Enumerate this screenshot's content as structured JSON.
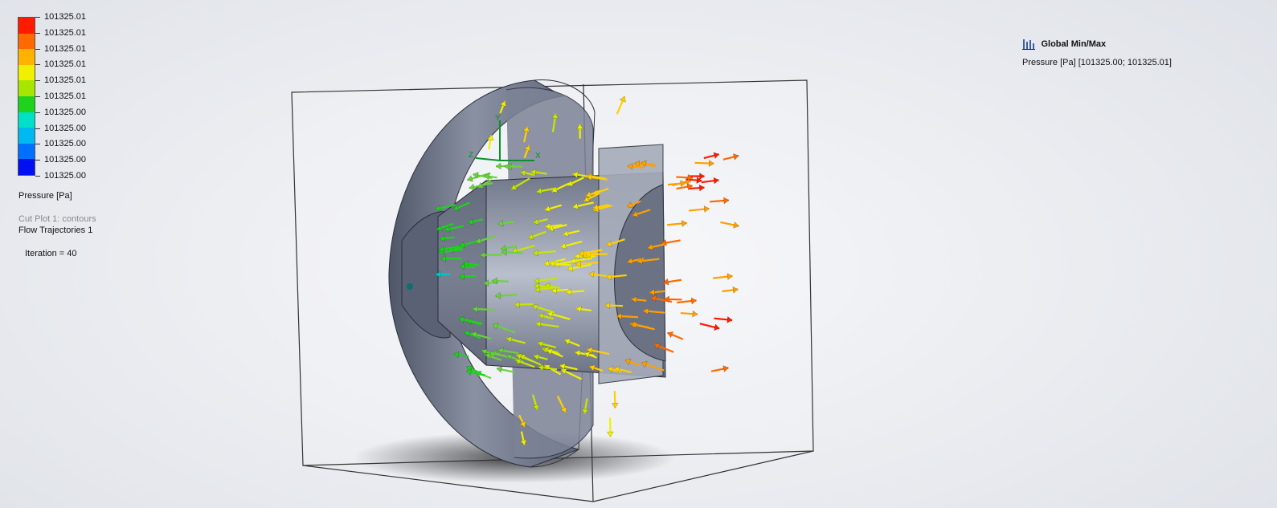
{
  "legend": {
    "values": [
      "101325.01",
      "101325.01",
      "101325.01",
      "101325.01",
      "101325.01",
      "101325.01",
      "101325.00",
      "101325.00",
      "101325.00",
      "101325.00",
      "101325.00"
    ],
    "colors": [
      "#ff1a00",
      "#ff6a00",
      "#ffb300",
      "#f0f000",
      "#a6e600",
      "#1ed21e",
      "#00e0c8",
      "#00b8f0",
      "#0070ff",
      "#0010f0"
    ],
    "title": "Pressure [Pa]"
  },
  "labels": {
    "cut_plot": "Cut Plot 1: contours",
    "flow_trajectories": "Flow Trajectories 1",
    "iteration": "Iteration = 40"
  },
  "global_minmax": {
    "title": "Global Min/Max",
    "value": "Pressure [Pa] [101325.00; 101325.01]"
  },
  "triad": {
    "x": "X",
    "y": "Y",
    "z": "Z"
  },
  "vector_palette": [
    "#ff1a00",
    "#ff6a00",
    "#ffa000",
    "#ffd000",
    "#f0f000",
    "#c8e600",
    "#6ad23c",
    "#1ed21e",
    "#00c8c8"
  ]
}
